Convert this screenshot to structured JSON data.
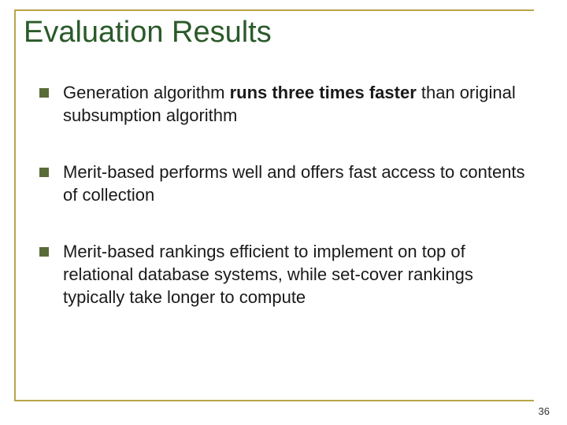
{
  "title": "Evaluation Results",
  "bullets": [
    {
      "pre": "Generation algorithm ",
      "bold": "runs three times faster",
      "post": " than original subsumption algorithm"
    },
    {
      "pre": "Merit-based performs well and offers fast access to contents of collection",
      "bold": "",
      "post": ""
    },
    {
      "pre": "Merit-based rankings efficient to implement on top of relational database systems, while set-cover rankings typically take longer to compute",
      "bold": "",
      "post": ""
    }
  ],
  "page_number": "36",
  "colors": {
    "frame": "#b8a548",
    "title": "#2a5a2a",
    "bullet_marker": "#5a6b3a",
    "text": "#1a1a1a",
    "background": "#ffffff"
  }
}
